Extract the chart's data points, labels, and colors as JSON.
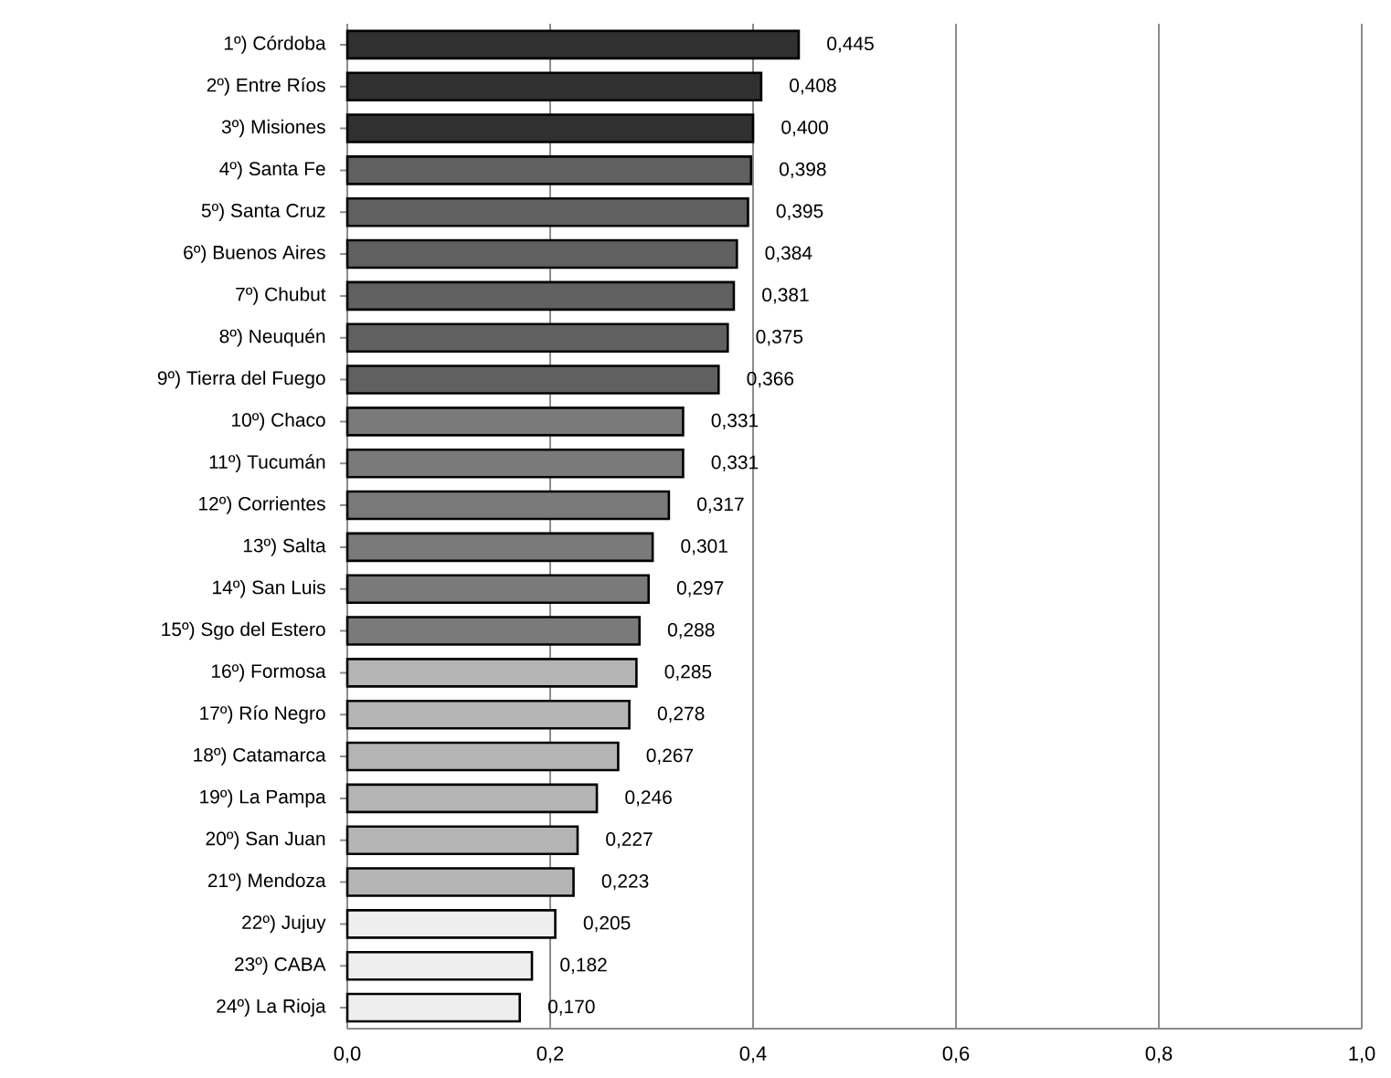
{
  "chart_data": {
    "type": "bar",
    "orientation": "horizontal",
    "categories": [
      "1º) Córdoba",
      "2º) Entre Ríos",
      "3º) Misiones",
      "4º) Santa Fe",
      "5º) Santa Cruz",
      "6º) Buenos  Aires",
      "7º) Chubut",
      "8º) Neuquén",
      "9º) Tierra  del Fuego",
      "10º) Chaco",
      "11º) Tucumán",
      "12º) Corrientes",
      "13º) Salta",
      "14º) San  Luis",
      "15º) Sgo  del Estero",
      "16º) Formosa",
      "17º) Río  Negro",
      "18º) Catamarca",
      "19º) La Pampa",
      "20º) San  Juan",
      "21º) Mendoza",
      "22º) Jujuy",
      "23º) CABA",
      "24º) La Rioja"
    ],
    "values": [
      0.445,
      0.408,
      0.4,
      0.398,
      0.395,
      0.384,
      0.381,
      0.375,
      0.366,
      0.331,
      0.331,
      0.317,
      0.301,
      0.297,
      0.288,
      0.285,
      0.278,
      0.267,
      0.246,
      0.227,
      0.223,
      0.205,
      0.182,
      0.17
    ],
    "value_labels": [
      "0,445",
      "0,408",
      "0,400",
      "0,398",
      "0,395",
      "0,384",
      "0,381",
      "0,375",
      "0,366",
      "0,331",
      "0,331",
      "0,317",
      "0,301",
      "0,297",
      "0,288",
      "0,285",
      "0,278",
      "0,267",
      "0,246",
      "0,227",
      "0,223",
      "0,205",
      "0,182",
      "0,170"
    ],
    "colors": [
      "#303030",
      "#303030",
      "#303030",
      "#606060",
      "#606060",
      "#606060",
      "#606060",
      "#606060",
      "#606060",
      "#7a7a7a",
      "#7a7a7a",
      "#7a7a7a",
      "#7a7a7a",
      "#7a7a7a",
      "#7a7a7a",
      "#b4b4b4",
      "#b4b4b4",
      "#b4b4b4",
      "#b4b4b4",
      "#b4b4b4",
      "#b4b4b4",
      "#eeeeee",
      "#eeeeee",
      "#eeeeee"
    ],
    "xlim": [
      0,
      1
    ],
    "xticks": [
      {
        "value": 0,
        "label": "0,0"
      },
      {
        "value": 0.2,
        "label": "0,2"
      },
      {
        "value": 0.4,
        "label": "0,4"
      },
      {
        "value": 0.6,
        "label": "0,6"
      },
      {
        "value": 0.8,
        "label": "0,8"
      },
      {
        "value": 1,
        "label": "1,0"
      }
    ],
    "grid": "x"
  }
}
